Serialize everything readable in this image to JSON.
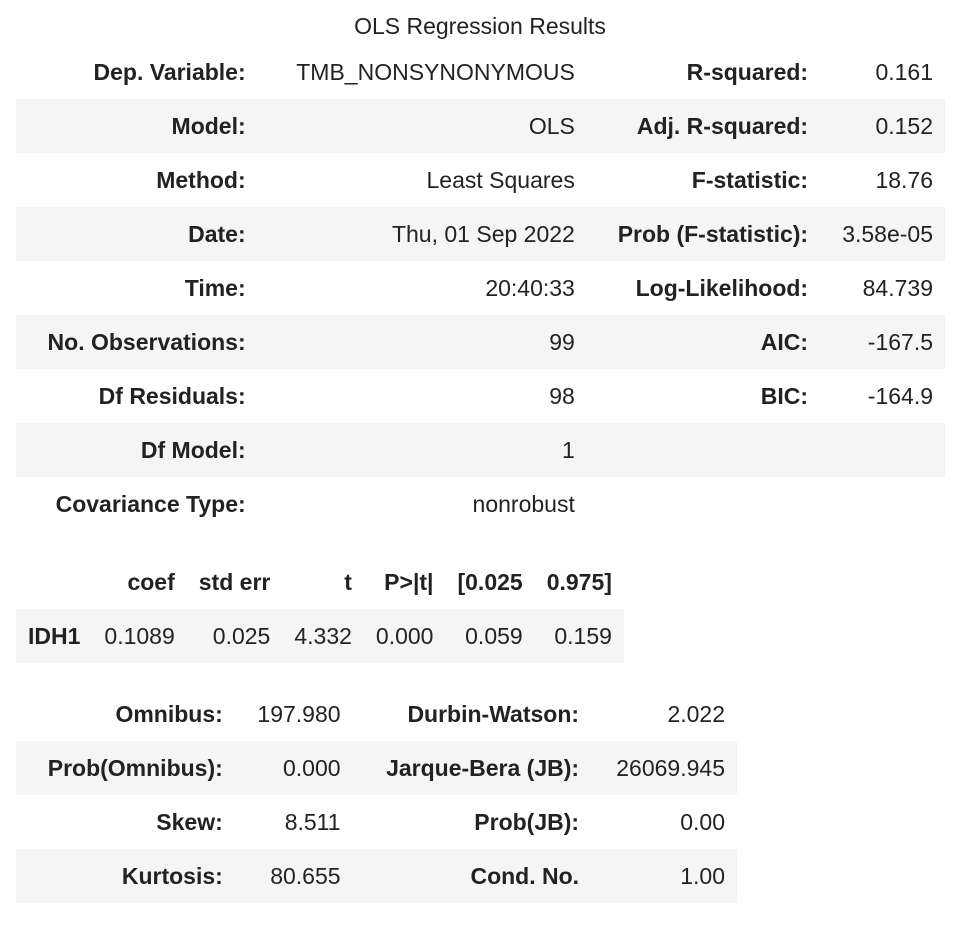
{
  "title": "OLS Regression Results",
  "summary": {
    "rows": [
      {
        "label1": "Dep. Variable:",
        "value1": "TMB_NONSYNONYMOUS",
        "label2": "R-squared:",
        "value2": "0.161"
      },
      {
        "label1": "Model:",
        "value1": "OLS",
        "label2": "Adj. R-squared:",
        "value2": "0.152"
      },
      {
        "label1": "Method:",
        "value1": "Least Squares",
        "label2": "F-statistic:",
        "value2": "18.76"
      },
      {
        "label1": "Date:",
        "value1": "Thu, 01 Sep 2022",
        "label2": "Prob (F-statistic):",
        "value2": "3.58e-05"
      },
      {
        "label1": "Time:",
        "value1": "20:40:33",
        "label2": "Log-Likelihood:",
        "value2": "84.739"
      },
      {
        "label1": "No. Observations:",
        "value1": "99",
        "label2": "AIC:",
        "value2": "-167.5"
      },
      {
        "label1": "Df Residuals:",
        "value1": "98",
        "label2": "BIC:",
        "value2": "-164.9"
      },
      {
        "label1": "Df Model:",
        "value1": "1",
        "label2": "",
        "value2": ""
      },
      {
        "label1": "Covariance Type:",
        "value1": "nonrobust",
        "label2": "",
        "value2": ""
      }
    ]
  },
  "coefficients": {
    "headers": [
      "coef",
      "std err",
      "t",
      "P>|t|",
      "[0.025",
      "0.975]"
    ],
    "rows": [
      {
        "name": "IDH1",
        "coef": "0.1089",
        "std_err": "0.025",
        "t": "4.332",
        "p": "0.000",
        "ci_low": "0.059",
        "ci_high": "0.159"
      }
    ]
  },
  "diagnostics": {
    "rows": [
      {
        "label1": "Omnibus:",
        "value1": "197.980",
        "label2": "Durbin-Watson:",
        "value2": "2.022"
      },
      {
        "label1": "Prob(Omnibus):",
        "value1": "0.000",
        "label2": "Jarque-Bera (JB):",
        "value2": "26069.945"
      },
      {
        "label1": "Skew:",
        "value1": "8.511",
        "label2": "Prob(JB):",
        "value2": "0.00"
      },
      {
        "label1": "Kurtosis:",
        "value1": "80.655",
        "label2": "Cond. No.",
        "value2": "1.00"
      }
    ]
  }
}
